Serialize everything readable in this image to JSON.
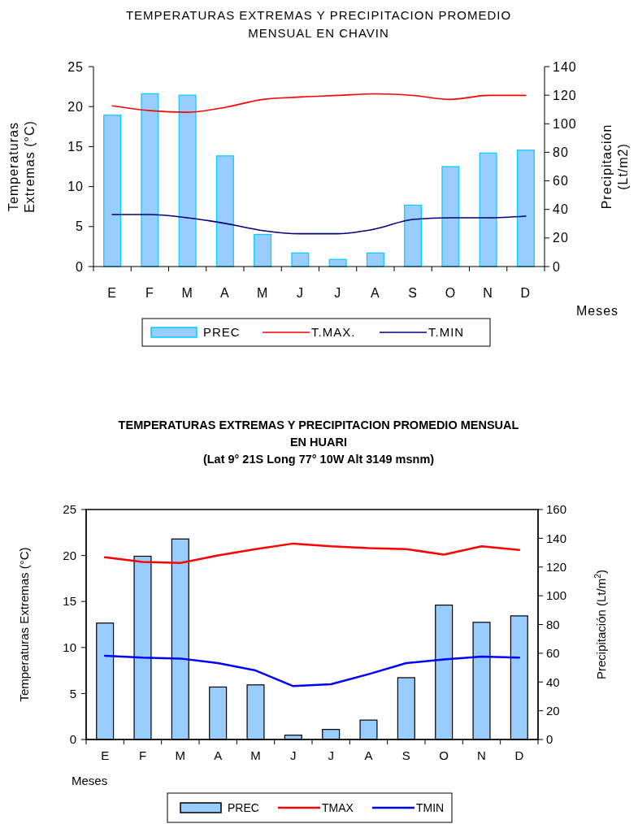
{
  "chart_data": [
    {
      "type": "bar",
      "title": "TEMPERATURAS EXTREMAS Y PRECIPITACION PROMEDIO MENSUAL EN CHAVIN",
      "xlabel": "Meses",
      "ylabel": "Temperaturas Extremas (°C)",
      "y2label": "Precipitación (Lt/m2)",
      "categories": [
        "E",
        "F",
        "M",
        "A",
        "M",
        "J",
        "J",
        "A",
        "S",
        "O",
        "N",
        "D"
      ],
      "series": [
        {
          "name": "PREC",
          "axis": "y2",
          "color": "#99ccff",
          "values": [
            106,
            121,
            120,
            77.5,
            22.5,
            9.5,
            5,
            9.5,
            43,
            70,
            79.5,
            81.5
          ]
        },
        {
          "name": "T.MAX.",
          "type": "line",
          "color": "#ff0000",
          "values": [
            20.1,
            19.5,
            19.3,
            19.9,
            20.9,
            21.2,
            21.4,
            21.6,
            21.4,
            20.9,
            21.4,
            21.4
          ]
        },
        {
          "name": "T.MIN",
          "type": "line",
          "color": "#000080",
          "values": [
            6.5,
            6.5,
            6.1,
            5.4,
            4.5,
            4.1,
            4.1,
            4.7,
            5.9,
            6.1,
            6.1,
            6.3
          ]
        }
      ],
      "ylim": [
        0,
        25
      ],
      "yticks": [
        0,
        5,
        10,
        15,
        20,
        25
      ],
      "y2lim": [
        0,
        140
      ],
      "y2ticks": [
        0,
        20,
        40,
        60,
        80,
        100,
        120,
        140
      ],
      "line_style": "solid",
      "grid": false,
      "legend": "bottom"
    },
    {
      "type": "bar",
      "title": "TEMPERATURAS  EXTREMAS  Y  PRECIPITACION PROMEDIO MENSUAL EN  HUARI",
      "subtitle": "(Lat 9° 21S Long 77° 10W Alt 3149 msnm)",
      "xlabel": "Meses",
      "ylabel": "Temperaturas Extremas  (°C)",
      "y2label": "Precipitación (Lt/m$^{2}$)",
      "categories": [
        "E",
        "F",
        "M",
        "A",
        "M",
        "J",
        "J",
        "A",
        "S",
        "O",
        "N",
        "D"
      ],
      "series": [
        {
          "name": "PREC",
          "axis": "y2",
          "color": "#99ccff",
          "values": [
            81,
            127.5,
            139.5,
            36.5,
            38,
            3,
            7,
            13.5,
            43,
            93.5,
            81.5,
            86
          ]
        },
        {
          "name": "TMAX",
          "type": "line",
          "color": "#ff0000",
          "values": [
            19.8,
            19.3,
            19.2,
            20.0,
            20.7,
            21.3,
            21.0,
            20.8,
            20.7,
            20.1,
            21.0,
            20.6
          ]
        },
        {
          "name": "TMIN",
          "type": "line",
          "color": "#0000ff",
          "values": [
            9.1,
            8.9,
            8.8,
            8.3,
            7.5,
            5.8,
            6.0,
            7.1,
            8.3,
            8.7,
            9.0,
            8.9
          ]
        }
      ],
      "ylim": [
        0,
        25
      ],
      "yticks": [
        0,
        5,
        10,
        15,
        20,
        25
      ],
      "y2lim": [
        0,
        160
      ],
      "y2ticks": [
        0,
        20,
        40,
        60,
        80,
        100,
        120,
        140,
        160
      ],
      "line_style": "solid",
      "grid": false,
      "legend": "bottom"
    }
  ]
}
